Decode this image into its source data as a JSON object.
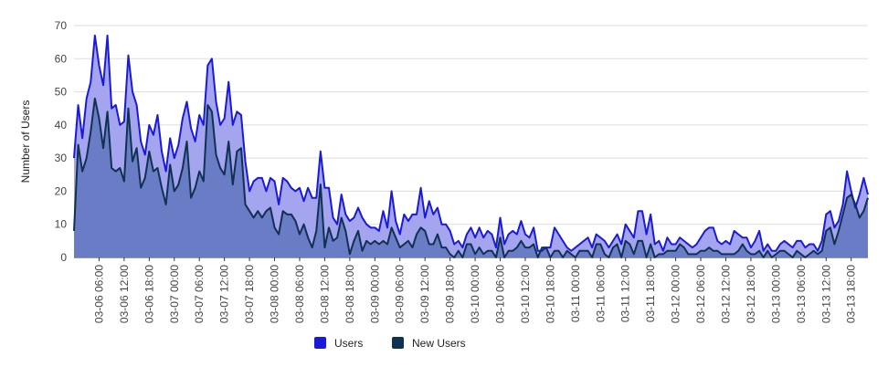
{
  "chart_data": {
    "type": "area",
    "title": "",
    "xlabel": "",
    "ylabel": "Number of Users",
    "ylim": [
      0,
      70
    ],
    "yticks": [
      0,
      10,
      20,
      30,
      40,
      50,
      60,
      70
    ],
    "grid": true,
    "legend_position": "bottom",
    "x_start": "03-06 00:00",
    "x_step_hours": 1,
    "x_tick_labels": [
      "03-06 06:00",
      "03-06 12:00",
      "03-06 18:00",
      "03-07 00:00",
      "03-07 06:00",
      "03-07 12:00",
      "03-07 18:00",
      "03-08 00:00",
      "03-08 06:00",
      "03-08 12:00",
      "03-08 18:00",
      "03-09 00:00",
      "03-09 06:00",
      "03-09 12:00",
      "03-09 18:00",
      "03-10 00:00",
      "03-10 06:00",
      "03-10 12:00",
      "03-10 18:00",
      "03-11 00:00",
      "03-11 06:00",
      "03-11 12:00",
      "03-11 18:00",
      "03-12 00:00",
      "03-12 06:00",
      "03-12 12:00",
      "03-12 18:00",
      "03-13 00:00",
      "03-13 06:00",
      "03-13 12:00",
      "03-13 18:00"
    ],
    "series": [
      {
        "name": "Users",
        "color": "#1a1adb",
        "fill": "#a4a4ef",
        "values": [
          30,
          46,
          36,
          48,
          53,
          67,
          58,
          52,
          67,
          45,
          46,
          40,
          41,
          61,
          50,
          46,
          35,
          31,
          40,
          37,
          43,
          32,
          26,
          36,
          30,
          34,
          42,
          47,
          39,
          35,
          43,
          40,
          58,
          60,
          47,
          40,
          42,
          53,
          40,
          44,
          43,
          29,
          20,
          23,
          24,
          24,
          20,
          24,
          23,
          16,
          24,
          23,
          21,
          20,
          21,
          17,
          21,
          18,
          18,
          32,
          21,
          21,
          12,
          10,
          19,
          13,
          11,
          12,
          15,
          12,
          10,
          9,
          9,
          8,
          14,
          9,
          20,
          11,
          7,
          13,
          11,
          13,
          13,
          21,
          12,
          17,
          13,
          15,
          10,
          10,
          8,
          4,
          5,
          3,
          7,
          9,
          6,
          9,
          6,
          8,
          7,
          3,
          12,
          4,
          7,
          8,
          7,
          11,
          7,
          6,
          9,
          2,
          2,
          3,
          3,
          9,
          7,
          5,
          3,
          2,
          3,
          4,
          5,
          6,
          3,
          7,
          6,
          5,
          3,
          5,
          7,
          4,
          10,
          8,
          6,
          14,
          14,
          7,
          13,
          4,
          5,
          2,
          6,
          4,
          4,
          6,
          5,
          4,
          3,
          4,
          6,
          8,
          9,
          9,
          5,
          4,
          5,
          4,
          8,
          7,
          6,
          6,
          3,
          5,
          8,
          2,
          4,
          2,
          2,
          4,
          5,
          4,
          3,
          5,
          5,
          3,
          4,
          4,
          2,
          5,
          13,
          14,
          9,
          11,
          16,
          26,
          20,
          15,
          19,
          24,
          19
        ]
      },
      {
        "name": "New Users",
        "color": "#0f3152",
        "fill": "#6a7cc6",
        "values": [
          8,
          34,
          26,
          30,
          38,
          48,
          42,
          33,
          44,
          27,
          26,
          27,
          23,
          45,
          29,
          33,
          21,
          24,
          32,
          26,
          27,
          21,
          16,
          28,
          20,
          22,
          27,
          35,
          18,
          21,
          26,
          23,
          46,
          44,
          31,
          27,
          25,
          35,
          22,
          32,
          33,
          16,
          14,
          12,
          14,
          12,
          14,
          15,
          9,
          7,
          14,
          13,
          13,
          11,
          7,
          10,
          6,
          3,
          8,
          22,
          3,
          9,
          5,
          6,
          12,
          8,
          1,
          5,
          8,
          2,
          5,
          4,
          5,
          4,
          5,
          4,
          9,
          6,
          3,
          4,
          5,
          3,
          7,
          9,
          8,
          4,
          4,
          7,
          3,
          3,
          1,
          0,
          2,
          0,
          4,
          4,
          1,
          3,
          1,
          2,
          2,
          0,
          6,
          0,
          2,
          2,
          3,
          5,
          3,
          3,
          4,
          0,
          3,
          3,
          0,
          2,
          2,
          0,
          2,
          1,
          0,
          2,
          2,
          2,
          0,
          4,
          4,
          1,
          0,
          3,
          4,
          0,
          5,
          4,
          1,
          5,
          5,
          0,
          4,
          0,
          1,
          1,
          2,
          2,
          2,
          4,
          3,
          1,
          1,
          1,
          2,
          2,
          3,
          2,
          2,
          1,
          1,
          1,
          1,
          2,
          4,
          2,
          1,
          1,
          2,
          0,
          2,
          0,
          1,
          2,
          2,
          1,
          0,
          2,
          1,
          0,
          1,
          2,
          1,
          2,
          8,
          9,
          4,
          8,
          13,
          18,
          19,
          16,
          12,
          14,
          18
        ]
      }
    ]
  }
}
